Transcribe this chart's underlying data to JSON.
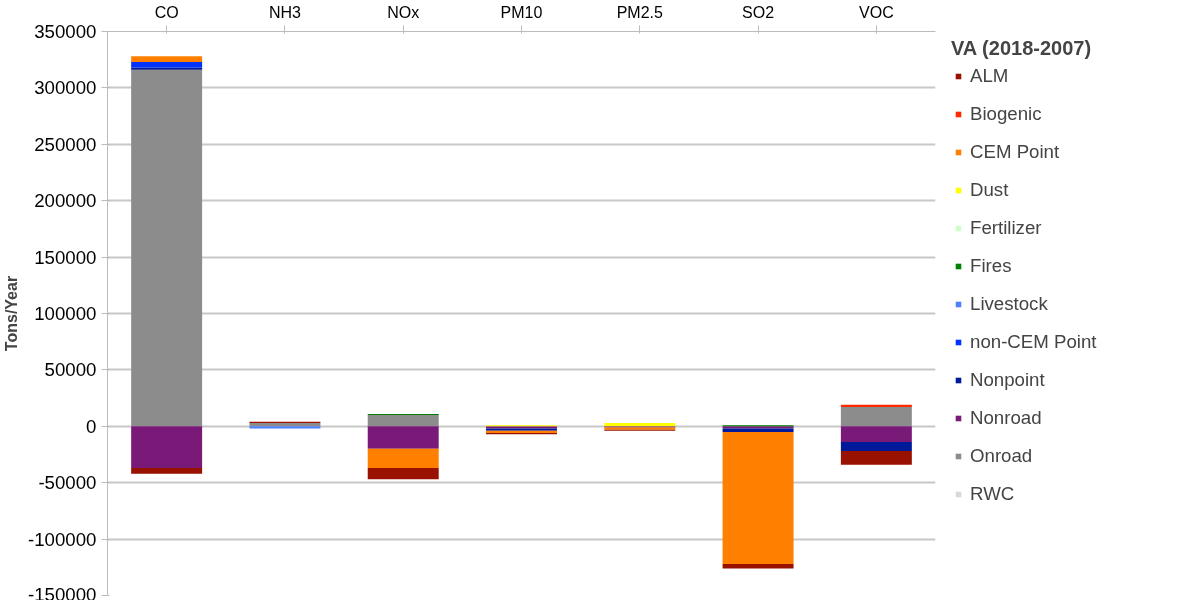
{
  "chart_data": {
    "type": "bar",
    "stacked": true,
    "ylabel": "Tons/Year",
    "legend_title": "VA (2018-2007)",
    "categories": [
      "CO",
      "NH3",
      "NOx",
      "PM10",
      "PM2.5",
      "SO2",
      "VOC"
    ],
    "ylim": [
      -150000,
      350000
    ],
    "yticks": [
      -150000,
      -100000,
      -50000,
      0,
      50000,
      100000,
      150000,
      200000,
      250000,
      300000,
      350000
    ],
    "grid": "y",
    "legend": "right",
    "series": [
      {
        "name": "RWC",
        "color": "#d9d9d9",
        "values": [
          null,
          null,
          null,
          null,
          null,
          null,
          null
        ]
      },
      {
        "name": "Onroad",
        "color": "#8c8c8c",
        "values": [
          316000,
          3000,
          10000,
          null,
          null,
          null,
          17000
        ]
      },
      {
        "name": "Nonroad",
        "color": "#7a1a78",
        "values": [
          -37000,
          null,
          -20000,
          -2000,
          -1000,
          -2000,
          -14000
        ]
      },
      {
        "name": "Nonpoint",
        "color": "#001a99",
        "values": [
          2000,
          null,
          null,
          -2000,
          null,
          -3000,
          -8000
        ]
      },
      {
        "name": "non-CEM Point",
        "color": "#0033ff",
        "values": [
          5000,
          null,
          null,
          null,
          null,
          null,
          null
        ]
      },
      {
        "name": "Livestock",
        "color": "#4f81ff",
        "values": [
          null,
          -2000,
          null,
          null,
          null,
          null,
          null
        ]
      },
      {
        "name": "Fires",
        "color": "#008000",
        "values": [
          null,
          null,
          1000,
          null,
          null,
          1000,
          null
        ]
      },
      {
        "name": "Fertilizer",
        "color": "#ccffcc",
        "values": [
          null,
          null,
          null,
          null,
          null,
          null,
          null
        ]
      },
      {
        "name": "Dust",
        "color": "#ffff00",
        "values": [
          null,
          null,
          null,
          1000,
          3000,
          null,
          null
        ]
      },
      {
        "name": "CEM Point",
        "color": "#ff7f00",
        "values": [
          5000,
          null,
          -17000,
          -2000,
          -2000,
          -117000,
          null
        ]
      },
      {
        "name": "Biogenic",
        "color": "#ff2a00",
        "values": [
          null,
          null,
          null,
          null,
          null,
          null,
          2000
        ]
      },
      {
        "name": "ALM",
        "color": "#991100",
        "values": [
          -5000,
          1000,
          -10000,
          -1000,
          -1000,
          -4000,
          -12000
        ]
      }
    ]
  }
}
